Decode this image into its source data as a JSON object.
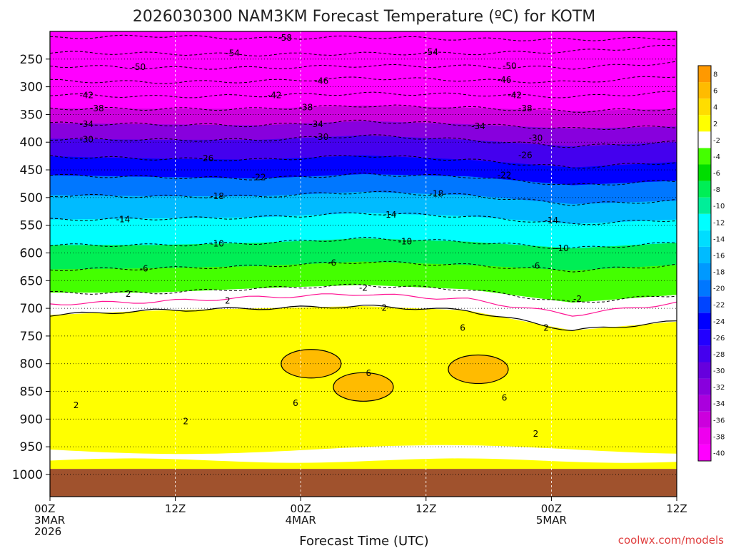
{
  "chart_data": {
    "type": "heatmap",
    "title": "2026030300 NAM3KM Forecast Temperature (ºC) for KOTM",
    "xlabel": "Forecast Time (UTC)",
    "credit": "coolwx.com/models",
    "x_hours_range": [
      0,
      60
    ],
    "x_ticks": [
      {
        "hour": 0,
        "lines": [
          "00Z",
          "3MAR",
          "2026"
        ]
      },
      {
        "hour": 12,
        "lines": [
          "12Z"
        ]
      },
      {
        "hour": 24,
        "lines": [
          "00Z",
          "4MAR"
        ]
      },
      {
        "hour": 36,
        "lines": [
          "12Z"
        ]
      },
      {
        "hour": 48,
        "lines": [
          "00Z",
          "5MAR"
        ]
      },
      {
        "hour": 60,
        "lines": [
          "12Z"
        ]
      }
    ],
    "y_pressure_ticks": [
      250,
      300,
      350,
      400,
      450,
      500,
      550,
      600,
      650,
      700,
      750,
      800,
      850,
      900,
      950,
      1000
    ],
    "y_axis": "pressure (hPa), inverted, top 200 to bottom 1040",
    "surface_pressure_hpa": 990,
    "grid": true,
    "colorbar": {
      "levels": [
        -40,
        -38,
        -36,
        -34,
        -32,
        -30,
        -28,
        -26,
        -24,
        -22,
        -20,
        -18,
        -16,
        -14,
        -12,
        -10,
        -8,
        -6,
        -4,
        -2,
        2,
        4,
        6,
        8
      ],
      "colors": [
        "#ff00ff",
        "#ee00ee",
        "#cc00dd",
        "#aa00dd",
        "#8800dd",
        "#6600dd",
        "#4400ee",
        "#2200ff",
        "#0000ff",
        "#0044ff",
        "#0077ff",
        "#0099ff",
        "#00bbff",
        "#00ddff",
        "#00ffff",
        "#00ee99",
        "#00ee55",
        "#00dd00",
        "#44ff00",
        "#ffffff",
        "#ffff00",
        "#ffdd00",
        "#ffbb00",
        "#ff9900"
      ]
    },
    "contours": [
      {
        "value": -58,
        "label": "-58",
        "p": [
          212,
          208,
          213,
          210,
          214,
          215,
          212
        ]
      },
      {
        "value": -54,
        "label": "-54",
        "p": [
          238,
          240,
          242,
          240,
          240,
          236,
          226
        ]
      },
      {
        "value": -50,
        "label": "-50",
        "p": [
          262,
          266,
          266,
          262,
          263,
          266,
          256
        ]
      },
      {
        "value": -46,
        "label": "-46",
        "p": [
          289,
          292,
          290,
          284,
          288,
          292,
          280
        ]
      },
      {
        "value": -42,
        "label": "-42",
        "p": [
          314,
          318,
          316,
          312,
          314,
          318,
          310
        ]
      },
      {
        "value": -38,
        "label": "-38",
        "p": [
          339,
          340,
          340,
          334,
          338,
          344,
          340
        ]
      },
      {
        "value": -34,
        "label": "-34",
        "p": [
          366,
          368,
          370,
          362,
          368,
          376,
          372
        ]
      },
      {
        "value": -30,
        "label": "-30",
        "p": [
          394,
          396,
          396,
          388,
          396,
          408,
          400
        ]
      },
      {
        "value": -26,
        "label": "-26",
        "p": [
          426,
          430,
          432,
          424,
          432,
          446,
          436
        ]
      },
      {
        "value": -22,
        "label": "-22",
        "p": [
          460,
          463,
          466,
          458,
          462,
          478,
          470
        ]
      },
      {
        "value": -18,
        "label": "-18",
        "p": [
          496,
          498,
          498,
          490,
          496,
          512,
          506
        ]
      },
      {
        "value": -14,
        "label": "-14",
        "p": [
          540,
          538,
          536,
          528,
          534,
          548,
          540
        ]
      },
      {
        "value": -10,
        "label": "-10",
        "p": [
          586,
          586,
          582,
          574,
          580,
          592,
          582
        ]
      },
      {
        "value": -6,
        "label": "-6",
        "p": [
          630,
          628,
          624,
          616,
          622,
          632,
          622
        ]
      },
      {
        "value": -2,
        "label": "-2",
        "p": [
          672,
          672,
          664,
          658,
          666,
          690,
          676
        ]
      },
      {
        "value": 0,
        "label": "",
        "p": [
          692,
          688,
          680,
          674,
          684,
          712,
          690
        ]
      },
      {
        "value": 2,
        "label": "2",
        "p": [
          712,
          704,
          700,
          696,
          704,
          740,
          724
        ]
      }
    ],
    "warm_pockets": [
      {
        "label": "6",
        "center_hour": 25,
        "center_p": 800
      },
      {
        "label": "6",
        "center_hour": 41,
        "center_p": 810
      },
      {
        "label": "6",
        "center_hour": 30,
        "center_p": 842
      }
    ],
    "contour_labels": [
      {
        "text": "-58",
        "hour": 22.5,
        "p": 212
      },
      {
        "text": "-54",
        "hour": 17.5,
        "p": 240
      },
      {
        "text": "-54",
        "hour": 36.5,
        "p": 238
      },
      {
        "text": "-50",
        "hour": 8.5,
        "p": 265
      },
      {
        "text": "-50",
        "hour": 44,
        "p": 263
      },
      {
        "text": "-46",
        "hour": 26,
        "p": 290
      },
      {
        "text": "-46",
        "hour": 43.5,
        "p": 288
      },
      {
        "text": "-42",
        "hour": 3.5,
        "p": 316
      },
      {
        "text": "-42",
        "hour": 21.5,
        "p": 316
      },
      {
        "text": "-42",
        "hour": 44.5,
        "p": 316
      },
      {
        "text": "-38",
        "hour": 4.5,
        "p": 340
      },
      {
        "text": "-38",
        "hour": 24.5,
        "p": 338
      },
      {
        "text": "-38",
        "hour": 45.5,
        "p": 340
      },
      {
        "text": "-34",
        "hour": 3.5,
        "p": 368
      },
      {
        "text": "-34",
        "hour": 25.5,
        "p": 368
      },
      {
        "text": "-34",
        "hour": 41,
        "p": 372
      },
      {
        "text": "-30",
        "hour": 3.5,
        "p": 396
      },
      {
        "text": "-30",
        "hour": 26,
        "p": 391
      },
      {
        "text": "-30",
        "hour": 46.5,
        "p": 393
      },
      {
        "text": "-26",
        "hour": 15,
        "p": 430
      },
      {
        "text": "-26",
        "hour": 45.5,
        "p": 424
      },
      {
        "text": "-22",
        "hour": 20,
        "p": 464
      },
      {
        "text": "-22",
        "hour": 43.5,
        "p": 460
      },
      {
        "text": "-18",
        "hour": 16,
        "p": 498
      },
      {
        "text": "-18",
        "hour": 37,
        "p": 494
      },
      {
        "text": "-14",
        "hour": 7,
        "p": 540
      },
      {
        "text": "-14",
        "hour": 32.5,
        "p": 532
      },
      {
        "text": "-14",
        "hour": 48,
        "p": 542
      },
      {
        "text": "-10",
        "hour": 16,
        "p": 584
      },
      {
        "text": "-10",
        "hour": 34,
        "p": 580
      },
      {
        "text": "-10",
        "hour": 49,
        "p": 592
      },
      {
        "text": "-6",
        "hour": 9,
        "p": 629
      },
      {
        "text": "-6",
        "hour": 27,
        "p": 619
      },
      {
        "text": "-6",
        "hour": 46.5,
        "p": 624
      },
      {
        "text": "2",
        "hour": 7.5,
        "p": 675
      },
      {
        "text": "-2",
        "hour": 30,
        "p": 664
      },
      {
        "text": "-2",
        "hour": 50.5,
        "p": 684
      },
      {
        "text": "2",
        "hour": 17,
        "p": 687
      },
      {
        "text": "2",
        "hour": 32,
        "p": 700
      },
      {
        "text": "2",
        "hour": 47.5,
        "p": 736
      },
      {
        "text": "6",
        "hour": 39.5,
        "p": 736
      },
      {
        "text": "6",
        "hour": 30.5,
        "p": 818
      },
      {
        "text": "6",
        "hour": 23.5,
        "p": 872
      },
      {
        "text": "6",
        "hour": 43.5,
        "p": 862
      },
      {
        "text": "2",
        "hour": 2.5,
        "p": 876
      },
      {
        "text": "2",
        "hour": 13,
        "p": 905
      },
      {
        "text": "2",
        "hour": 46.5,
        "p": 927
      }
    ]
  }
}
